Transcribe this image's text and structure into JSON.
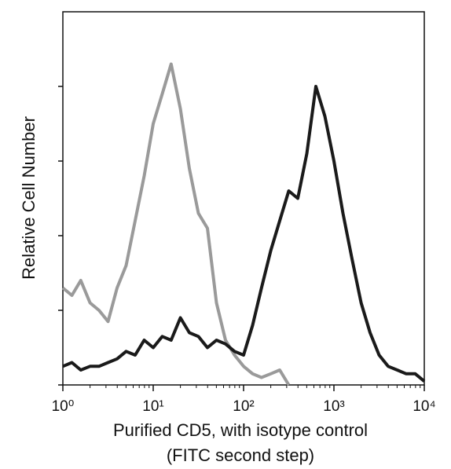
{
  "chart_data": {
    "type": "line",
    "xlabel": [
      "Purified CD5, with isotype control",
      "(FITC second step)"
    ],
    "ylabel": "Relative Cell Number",
    "log_x": true,
    "xlim": [
      1,
      10000
    ],
    "xticks": [
      {
        "value": 1,
        "label": "10⁰"
      },
      {
        "value": 10,
        "label": "10¹"
      },
      {
        "value": 100,
        "label": "10²"
      },
      {
        "value": 1000,
        "label": "10³"
      },
      {
        "value": 10000,
        "label": "10⁴"
      }
    ],
    "ylim": [
      0,
      100
    ],
    "yticks": [
      0,
      20,
      40,
      60,
      80
    ],
    "series": [
      {
        "color": "#9a9a9a",
        "x": [
          1,
          1.26,
          1.58,
          2,
          2.51,
          3.16,
          3.98,
          5.01,
          6.31,
          7.94,
          10,
          12.6,
          15.8,
          20,
          25.1,
          31.6,
          39.8,
          50.1,
          63.1,
          79.4,
          100,
          126,
          158,
          200,
          251,
          316
        ],
        "values": [
          26,
          24,
          28,
          22,
          20,
          17,
          26,
          32,
          44,
          56,
          70,
          78,
          86,
          74,
          58,
          46,
          42,
          22,
          12,
          8,
          5,
          3,
          2,
          3,
          4,
          0
        ]
      },
      {
        "color": "#1a1a1a",
        "x": [
          1,
          1.26,
          1.58,
          2,
          2.51,
          3.16,
          3.98,
          5.01,
          6.31,
          7.94,
          10,
          12.6,
          15.8,
          20,
          25.1,
          31.6,
          39.8,
          50.1,
          63.1,
          79.4,
          100,
          126,
          158,
          200,
          251,
          316,
          398,
          501,
          631,
          794,
          1000,
          1260,
          1580,
          2000,
          2510,
          3160,
          3980,
          5010,
          6310,
          7940,
          10000
        ],
        "values": [
          5,
          6,
          4,
          5,
          5,
          6,
          7,
          9,
          8,
          12,
          10,
          13,
          12,
          18,
          14,
          13,
          10,
          12,
          11,
          9,
          8,
          16,
          26,
          36,
          44,
          52,
          50,
          62,
          80,
          72,
          60,
          46,
          34,
          22,
          14,
          8,
          5,
          4,
          3,
          3,
          1
        ]
      }
    ]
  }
}
